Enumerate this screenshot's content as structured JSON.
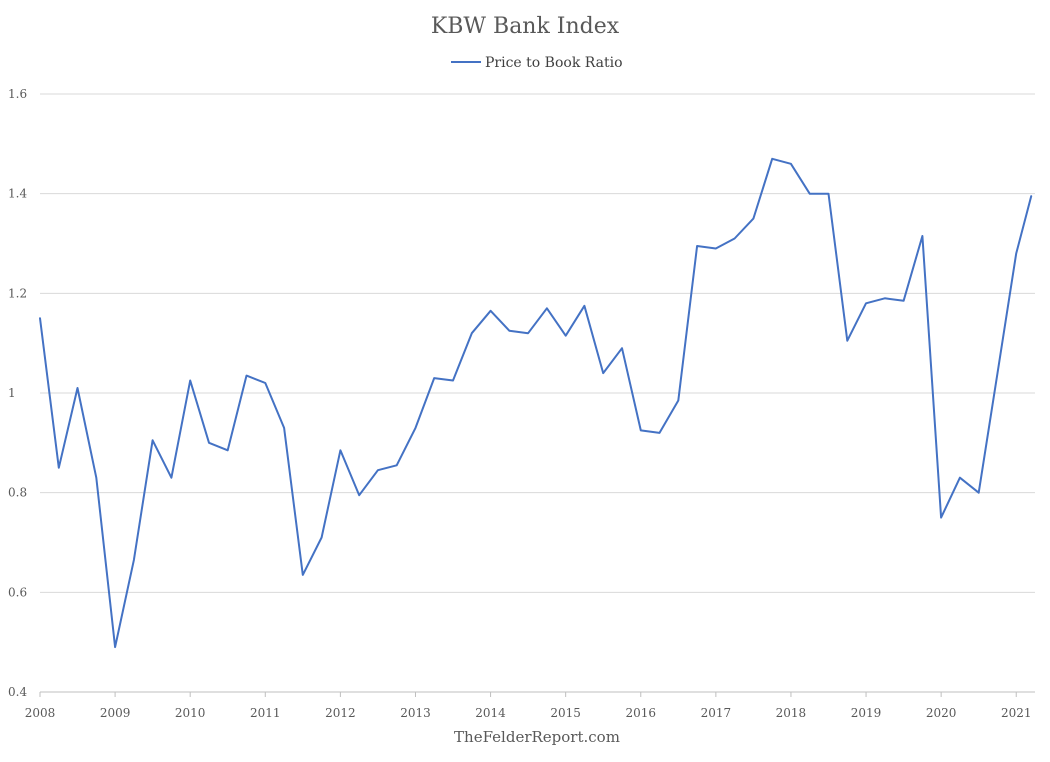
{
  "chart_data": {
    "type": "line",
    "title": "KBW Bank Index",
    "xlabel": "",
    "ylabel": "",
    "x_ticks": [
      "2008",
      "2009",
      "2010",
      "2011",
      "2012",
      "2013",
      "2014",
      "2015",
      "2016",
      "2017",
      "2018",
      "2019",
      "2020",
      "2021"
    ],
    "y_ticks": [
      "0.4",
      "0.6",
      "0.8",
      "1",
      "1.2",
      "1.4",
      "1.6"
    ],
    "ylim": [
      0.4,
      1.6
    ],
    "xlim": [
      2008.0,
      2021.25
    ],
    "grid": "horizontal",
    "legend_position": "top",
    "series": [
      {
        "name": "Price to Book Ratio",
        "color": "#4472c4",
        "x": [
          2008.0,
          2008.25,
          2008.5,
          2008.75,
          2009.0,
          2009.25,
          2009.5,
          2009.75,
          2010.0,
          2010.25,
          2010.5,
          2010.75,
          2011.0,
          2011.25,
          2011.5,
          2011.75,
          2012.0,
          2012.25,
          2012.5,
          2012.75,
          2013.0,
          2013.25,
          2013.5,
          2013.75,
          2014.0,
          2014.25,
          2014.5,
          2014.75,
          2015.0,
          2015.25,
          2015.5,
          2015.75,
          2016.0,
          2016.25,
          2016.5,
          2016.75,
          2017.0,
          2017.25,
          2017.5,
          2017.75,
          2018.0,
          2018.25,
          2018.5,
          2018.75,
          2019.0,
          2019.25,
          2019.5,
          2019.75,
          2020.0,
          2020.25,
          2020.5,
          2020.75,
          2021.0,
          2021.2
        ],
        "y": [
          1.15,
          0.85,
          1.01,
          0.83,
          0.49,
          0.665,
          0.905,
          0.83,
          1.025,
          0.9,
          0.885,
          1.035,
          1.02,
          0.93,
          0.635,
          0.71,
          0.885,
          0.795,
          0.845,
          0.855,
          0.93,
          1.03,
          1.025,
          1.12,
          1.165,
          1.125,
          1.12,
          1.17,
          1.115,
          1.175,
          1.04,
          1.09,
          0.925,
          0.92,
          0.985,
          1.295,
          1.29,
          1.31,
          1.35,
          1.47,
          1.46,
          1.4,
          1.4,
          1.105,
          1.18,
          1.19,
          1.185,
          1.315,
          0.75,
          0.83,
          0.8,
          1.04,
          1.28,
          1.395
        ]
      }
    ]
  },
  "source": "TheFelderReport.com",
  "colors": {
    "grid": "#d9d9d9",
    "axis": "#bfbfbf",
    "line": "#4472c4"
  }
}
